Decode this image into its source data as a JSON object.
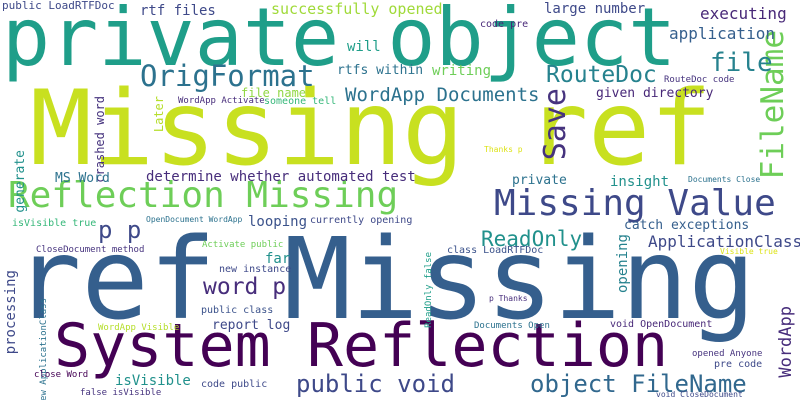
{
  "words": [
    {
      "text": "Missing ref",
      "color": "#c8e020"
    },
    {
      "text": "ref Missing",
      "color": "#355f8d"
    },
    {
      "text": "private object",
      "color": "#1f9e89"
    },
    {
      "text": "System Reflection",
      "color": "#440154"
    },
    {
      "text": "Reflection Missing",
      "color": "#6ece58"
    },
    {
      "text": "Missing Value",
      "color": "#3e4989"
    },
    {
      "text": "OrigFormat",
      "color": "#2c728e"
    },
    {
      "text": "RouteDoc",
      "color": "#26828e"
    },
    {
      "text": "FileName",
      "color": "#6ece58"
    },
    {
      "text": "Save",
      "color": "#46337e"
    },
    {
      "text": "file",
      "color": "#26828e"
    },
    {
      "text": "public void",
      "color": "#3e4989"
    },
    {
      "text": "object FileName",
      "color": "#31688e"
    },
    {
      "text": "WordApp Documents",
      "color": "#2c728e"
    },
    {
      "text": "ReadOnly",
      "color": "#21918c"
    },
    {
      "text": "word p",
      "color": "#472d7b"
    },
    {
      "text": "p p",
      "color": "#3e4989"
    },
    {
      "text": "WordApp",
      "color": "#472d7b"
    },
    {
      "text": "ApplicationClass",
      "color": "#3e4989"
    },
    {
      "text": "application",
      "color": "#355f8d"
    },
    {
      "text": "executing",
      "color": "#482878"
    },
    {
      "text": "successfully opened",
      "color": "#a0da39"
    },
    {
      "text": "large number",
      "color": "#3e4989"
    },
    {
      "text": "public LoadRTFDoc",
      "color": "#3e4989"
    },
    {
      "text": "rtf files",
      "color": "#3e4989"
    },
    {
      "text": "code pre",
      "color": "#482878"
    },
    {
      "text": "will",
      "color": "#1f9e89"
    },
    {
      "text": "rtfs within",
      "color": "#2c728e"
    },
    {
      "text": "writing",
      "color": "#6ece58"
    },
    {
      "text": "given directory",
      "color": "#482878"
    },
    {
      "text": "RouteDoc code",
      "color": "#46337e"
    },
    {
      "text": "file name",
      "color": "#90d743"
    },
    {
      "text": "someone tell",
      "color": "#35b779"
    },
    {
      "text": "WordApp Activate",
      "color": "#472d7b"
    },
    {
      "text": "crashed word",
      "color": "#46337e"
    },
    {
      "text": "Later",
      "color": "#b5de2b"
    },
    {
      "text": "generate",
      "color": "#21918c"
    },
    {
      "text": "MS Word",
      "color": "#2c728e"
    },
    {
      "text": "determine whether automated test",
      "color": "#472d7b"
    },
    {
      "text": "private",
      "color": "#2c728e"
    },
    {
      "text": "insight",
      "color": "#21918c"
    },
    {
      "text": "Thanks p",
      "color": "#dde318"
    },
    {
      "text": "Documents Close",
      "color": "#2c728e"
    },
    {
      "text": "catch exceptions",
      "color": "#355f8d"
    },
    {
      "text": "looping",
      "color": "#3b528b"
    },
    {
      "text": "far",
      "color": "#21918c"
    },
    {
      "text": "opening",
      "color": "#26828e"
    },
    {
      "text": "processing",
      "color": "#3e4989"
    },
    {
      "text": "isVisible true",
      "color": "#35b779"
    },
    {
      "text": "OpenDocument WordApp",
      "color": "#2c728e"
    },
    {
      "text": "currently opening",
      "color": "#3e4989"
    },
    {
      "text": "class LoadRTFDoc",
      "color": "#3b528b"
    },
    {
      "text": "CloseDocument method",
      "color": "#46337e"
    },
    {
      "text": "Activate public",
      "color": "#6ece58"
    },
    {
      "text": "Visible true",
      "color": "#dde318"
    },
    {
      "text": "new instance",
      "color": "#3e4989"
    },
    {
      "text": "ReadOnly false",
      "color": "#1f9e89"
    },
    {
      "text": "p Thanks",
      "color": "#472d7b"
    },
    {
      "text": "new ApplicationClass",
      "color": "#2c728e"
    },
    {
      "text": "public class",
      "color": "#3b528b"
    },
    {
      "text": "report log",
      "color": "#3e4989"
    },
    {
      "text": "WordApp Visible",
      "color": "#b5de2b"
    },
    {
      "text": "Documents Open",
      "color": "#2c728e"
    },
    {
      "text": "void OpenDocument",
      "color": "#482878"
    },
    {
      "text": "opened Anyone",
      "color": "#46337e"
    },
    {
      "text": "close Word",
      "color": "#440154"
    },
    {
      "text": "isVisible",
      "color": "#21918c"
    },
    {
      "text": "code public",
      "color": "#3e4989"
    },
    {
      "text": "pre code",
      "color": "#3e4989"
    },
    {
      "text": "false isVisible",
      "color": "#46337e"
    },
    {
      "text": "void CloseDocument",
      "color": "#3e4989"
    }
  ]
}
